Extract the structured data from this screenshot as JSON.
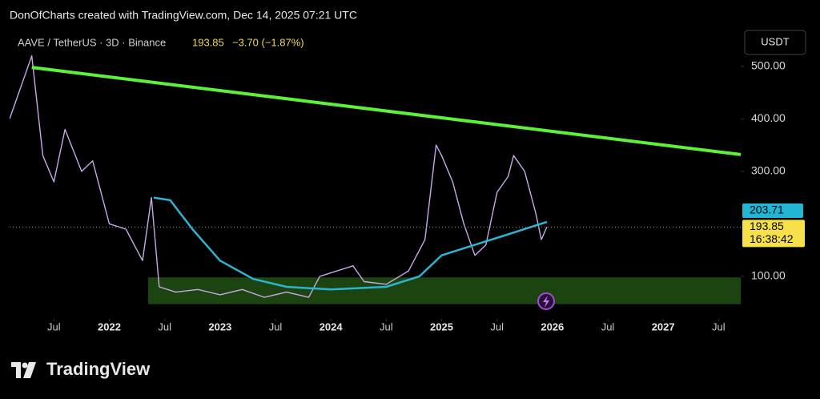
{
  "attribution": "DonOfCharts created with TradingView.com, Dec 14, 2025 07:21 UTC",
  "brand": "TradingView",
  "chart_data": {
    "type": "line",
    "title": "AAVE / TetherUS · 3D · Binance",
    "change_label": "−3.70 (−1.87%)",
    "currency": "USDT",
    "xlim": [
      2021.1,
      2027.7
    ],
    "ylim": [
      19,
      573
    ],
    "xticks": [
      {
        "value": 2021.5,
        "label": "Jul"
      },
      2022,
      {
        "value": 2022.5,
        "label": "Jul"
      },
      2023,
      {
        "value": 2023.5,
        "label": "Jul"
      },
      2024,
      {
        "value": 2024.5,
        "label": "Jul"
      },
      2025,
      {
        "value": 2025.5,
        "label": "Jul"
      },
      2026,
      {
        "value": 2026.5,
        "label": "Jul"
      },
      2027,
      {
        "value": 2027.5,
        "label": "Jul"
      }
    ],
    "yticks": [
      {
        "value": 100,
        "label": "100.00"
      },
      {
        "value": 300,
        "label": "300.00"
      },
      {
        "value": 400,
        "label": "400.00"
      },
      {
        "value": 500,
        "label": "500.00"
      }
    ],
    "grid": false,
    "series": [
      {
        "color": "#c7a9e8",
        "x": [
          2021.1,
          2021.3,
          2021.4,
          2021.5,
          2021.6,
          2021.75,
          2021.85,
          2022.0,
          2022.15,
          2022.3,
          2022.38,
          2022.45,
          2022.6,
          2022.8,
          2023.0,
          2023.2,
          2023.4,
          2023.6,
          2023.8,
          2023.9,
          2024.2,
          2024.3,
          2024.5,
          2024.7,
          2024.85,
          2024.95,
          2025.0,
          2025.1,
          2025.2,
          2025.3,
          2025.4,
          2025.5,
          2025.6,
          2025.65,
          2025.75,
          2025.85,
          2025.9,
          2025.95
        ],
        "values": [
          400,
          520,
          330,
          280,
          380,
          300,
          320,
          200,
          190,
          130,
          250,
          80,
          70,
          75,
          65,
          75,
          60,
          70,
          60,
          100,
          120,
          90,
          85,
          110,
          170,
          350,
          330,
          280,
          200,
          140,
          160,
          260,
          290,
          330,
          300,
          220,
          170,
          193.85
        ]
      },
      {
        "color": "#2bb5d1",
        "x": [
          2022.4,
          2022.55,
          2022.75,
          2023.0,
          2023.3,
          2023.6,
          2024.0,
          2024.5,
          2024.8,
          2025.0,
          2025.3,
          2025.6,
          2025.95
        ],
        "values": [
          250,
          245,
          190,
          130,
          95,
          80,
          75,
          80,
          100,
          140,
          160,
          180,
          203.71
        ]
      }
    ],
    "trendlines": [
      {
        "color": "#5df23a",
        "x": [
          2021.3,
          2027.7
        ],
        "y": [
          498,
          332
        ]
      }
    ],
    "zones": [
      {
        "color": "#1c4410",
        "x": [
          2022.35,
          2027.7
        ],
        "y": [
          47,
          98
        ]
      }
    ],
    "price_labels": [
      {
        "value": 203.71,
        "color": "#22b5d4"
      },
      {
        "value": 193.85,
        "color": "#f7e14b",
        "countdown": "16:38:42"
      }
    ]
  }
}
